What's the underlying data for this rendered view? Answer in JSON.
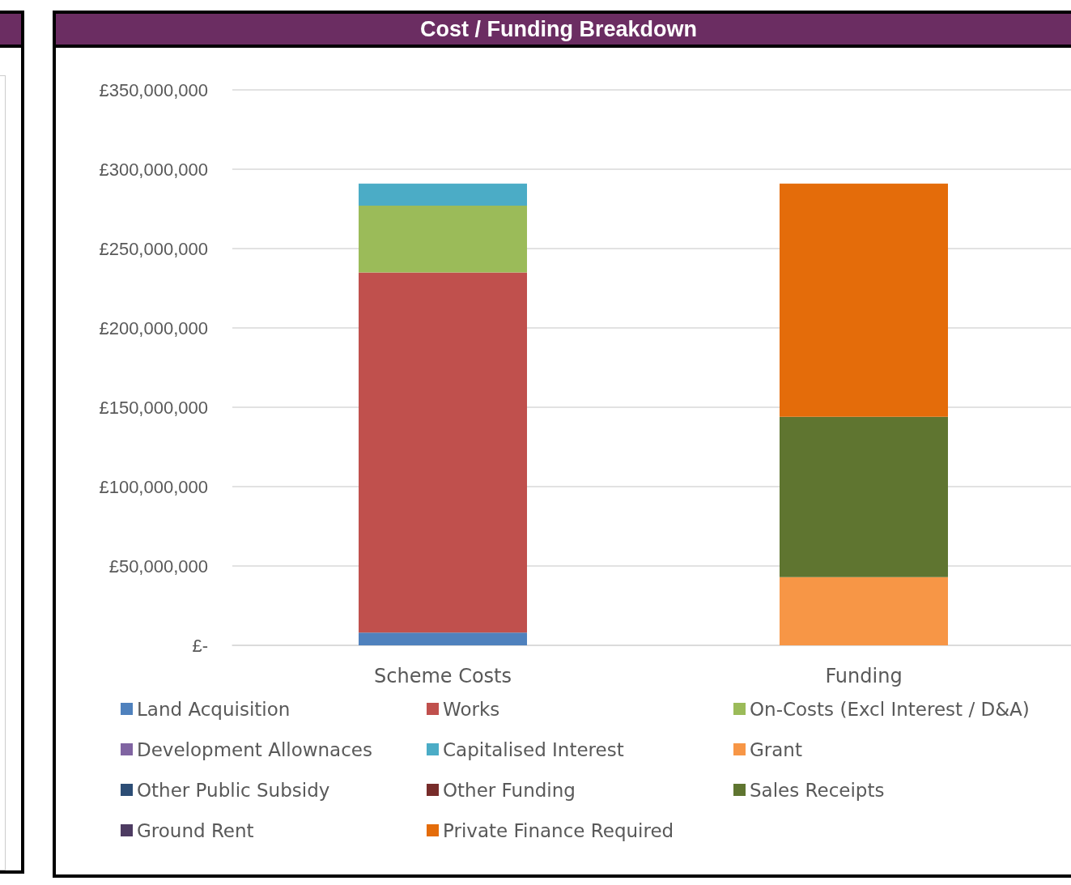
{
  "chart_data": {
    "type": "bar",
    "title": "Cost / Funding Breakdown",
    "categories": [
      "Scheme Costs",
      "Funding"
    ],
    "stacked": true,
    "grid": "y",
    "legend": "bottom",
    "ylim": [
      0,
      350000000
    ],
    "yticks": [
      {
        "value": 0,
        "label": "£-"
      },
      {
        "value": 50000000,
        "label": "£50,000,000"
      },
      {
        "value": 100000000,
        "label": "£100,000,000"
      },
      {
        "value": 150000000,
        "label": "£150,000,000"
      },
      {
        "value": 200000000,
        "label": "£200,000,000"
      },
      {
        "value": 250000000,
        "label": "£250,000,000"
      },
      {
        "value": 300000000,
        "label": "£300,000,000"
      },
      {
        "value": 350000000,
        "label": "£350,000,000"
      }
    ],
    "series": [
      {
        "name": "Land Acquisition",
        "color": "#4f81bd",
        "values": [
          8000000,
          0
        ]
      },
      {
        "name": "Works",
        "color": "#c0504d",
        "values": [
          227000000,
          0
        ]
      },
      {
        "name": "On-Costs (Excl Interest / D&A)",
        "color": "#9bbb59",
        "values": [
          42000000,
          0
        ]
      },
      {
        "name": "Development Allownaces",
        "color": "#8064a2",
        "values": [
          0,
          0
        ]
      },
      {
        "name": "Capitalised Interest",
        "color": "#4bacc6",
        "values": [
          14000000,
          0
        ]
      },
      {
        "name": "Grant",
        "color": "#f79646",
        "values": [
          0,
          43000000
        ]
      },
      {
        "name": "Other Public Subsidy",
        "color": "#2c4d75",
        "values": [
          0,
          0
        ]
      },
      {
        "name": "Other Funding",
        "color": "#772c2a",
        "values": [
          0,
          0
        ]
      },
      {
        "name": "Sales Receipts",
        "color": "#5f7530",
        "values": [
          0,
          101000000
        ]
      },
      {
        "name": "Ground Rent",
        "color": "#4d3b62",
        "values": [
          0,
          0
        ]
      },
      {
        "name": "Private Finance Required",
        "color": "#e46c0a",
        "values": [
          0,
          147000000
        ]
      }
    ]
  }
}
